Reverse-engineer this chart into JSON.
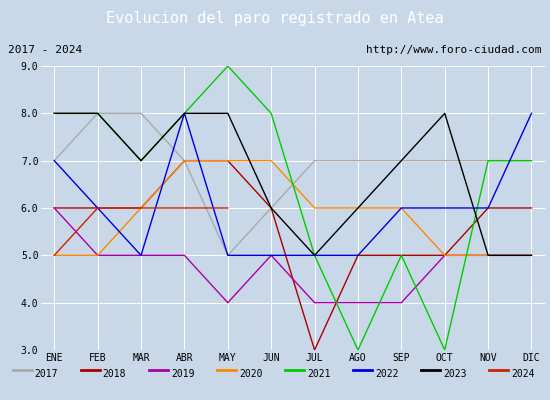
{
  "title": "Evolucion del paro registrado en Atea",
  "title_bg": "#4472c4",
  "subtitle_left": "2017 - 2024",
  "subtitle_right": "http://www.foro-ciudad.com",
  "months": [
    "ENE",
    "FEB",
    "MAR",
    "ABR",
    "MAY",
    "JUN",
    "JUL",
    "AGO",
    "SEP",
    "OCT",
    "NOV",
    "DIC"
  ],
  "ylim": [
    3.0,
    9.0
  ],
  "yticks": [
    3.0,
    4.0,
    5.0,
    6.0,
    7.0,
    8.0,
    9.0
  ],
  "series_order": [
    "2017",
    "2018",
    "2019",
    "2020",
    "2021",
    "2022",
    "2023",
    "2024"
  ],
  "series": {
    "2017": {
      "color": "#aaaaaa",
      "data": [
        7.0,
        8.0,
        8.0,
        7.0,
        5.0,
        6.0,
        7.0,
        7.0,
        7.0,
        7.0,
        7.0,
        7.0
      ]
    },
    "2018": {
      "color": "#aa0000",
      "data": [
        6.0,
        6.0,
        6.0,
        7.0,
        7.0,
        6.0,
        3.0,
        5.0,
        5.0,
        5.0,
        6.0,
        6.0
      ]
    },
    "2019": {
      "color": "#aa00aa",
      "data": [
        6.0,
        5.0,
        5.0,
        5.0,
        4.0,
        5.0,
        4.0,
        4.0,
        4.0,
        5.0,
        5.0,
        5.0
      ]
    },
    "2020": {
      "color": "#ff8800",
      "data": [
        5.0,
        5.0,
        6.0,
        7.0,
        7.0,
        7.0,
        6.0,
        6.0,
        6.0,
        5.0,
        5.0,
        5.0
      ]
    },
    "2021": {
      "color": "#00cc00",
      "data": [
        8.0,
        8.0,
        7.0,
        8.0,
        9.0,
        8.0,
        5.0,
        3.0,
        5.0,
        3.0,
        7.0,
        7.0
      ]
    },
    "2022": {
      "color": "#0000dd",
      "data": [
        7.0,
        6.0,
        5.0,
        8.0,
        5.0,
        5.0,
        5.0,
        5.0,
        6.0,
        6.0,
        6.0,
        8.0
      ]
    },
    "2023": {
      "color": "#000000",
      "data": [
        8.0,
        8.0,
        7.0,
        8.0,
        8.0,
        6.0,
        5.0,
        6.0,
        7.0,
        8.0,
        5.0,
        5.0
      ]
    },
    "2024": {
      "color": "#cc2200",
      "data": [
        5.0,
        6.0,
        6.0,
        6.0,
        6.0,
        null,
        null,
        null,
        null,
        null,
        null,
        null
      ]
    }
  },
  "bg_color": "#c8d8e8",
  "plot_bg": "#c8d8e8",
  "title_fontsize": 11,
  "subtitle_fontsize": 8,
  "tick_fontsize": 7,
  "legend_fontsize": 7,
  "linewidth": 1.0
}
